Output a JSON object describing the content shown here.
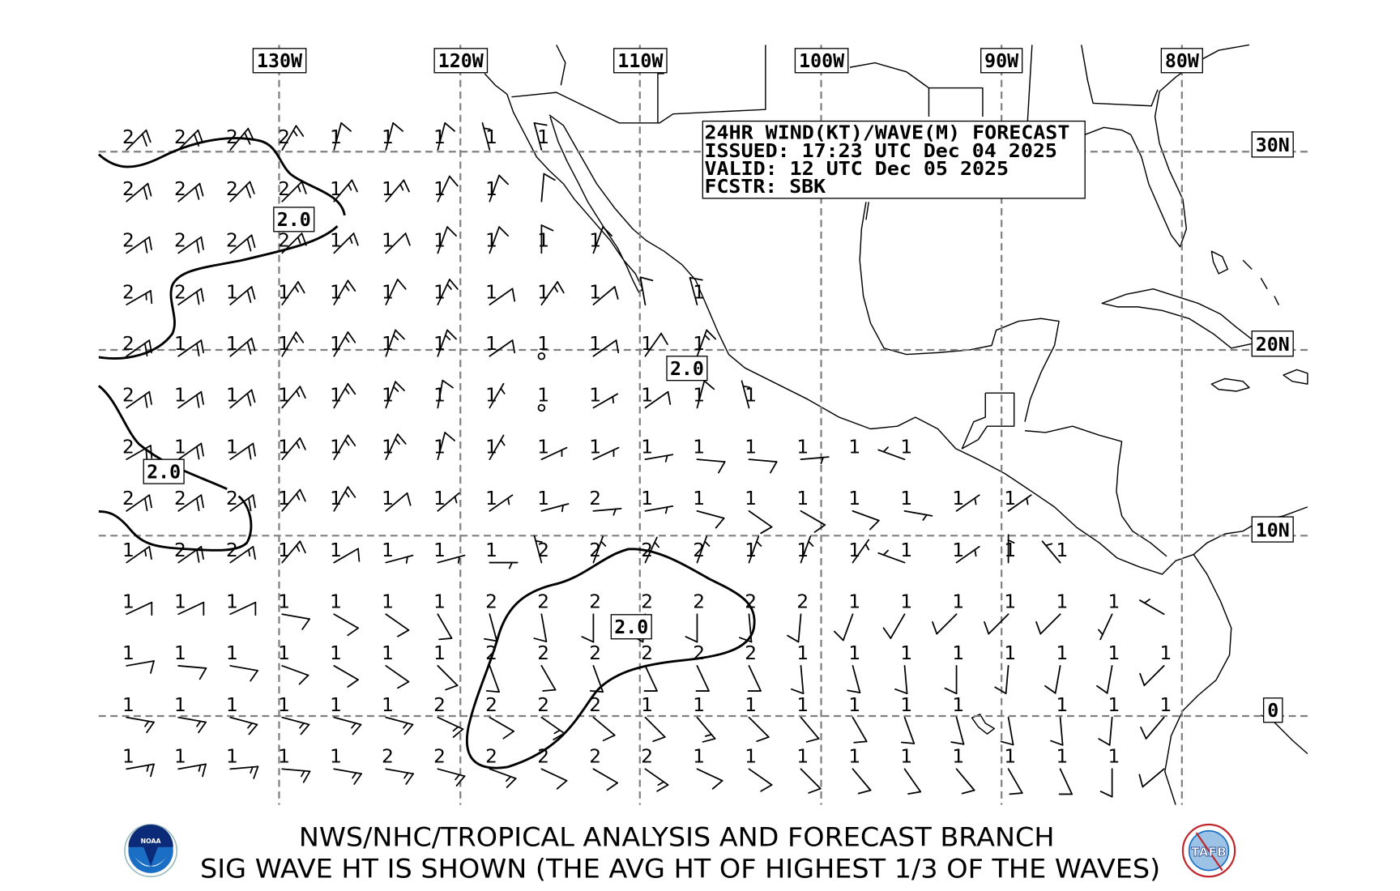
{
  "info_box": {
    "line1": "24HR WIND(KT)/WAVE(M) FORECAST",
    "line2": "ISSUED: 17:23 UTC Dec 04 2025",
    "line3": "VALID: 12 UTC Dec 05 2025",
    "line4": "FCSTR: SBK"
  },
  "longitude_labels": [
    "130W",
    "120W",
    "110W",
    "100W",
    "90W",
    "80W"
  ],
  "latitude_labels": [
    "30N",
    "20N",
    "10N",
    "0"
  ],
  "contour_labels": [
    "2.0",
    "2.0",
    "2.0",
    "2.0"
  ],
  "footer": {
    "line1": "NWS/NHC/TROPICAL ANALYSIS AND FORECAST BRANCH",
    "line2": "SIG WAVE HT IS SHOWN (THE AVG HT OF HIGHEST 1/3 OF THE WAVES)",
    "noaa_logo_text": "NOAA",
    "tafb_logo_text": "TAFB"
  },
  "colors": {
    "noaa_blue": "#1a6fc4",
    "noaa_navy": "#0b2a78",
    "tafb_red": "#c0282d",
    "grid": "#808080"
  },
  "stations_legend": "each station: [sig wave height m, wind direction from (deg), wind speed kt]",
  "stations": [
    [
      [
        2,
        45,
        20
      ],
      [
        2,
        45,
        20
      ],
      [
        2,
        40,
        20
      ],
      [
        2,
        30,
        15
      ],
      [
        1,
        15,
        10
      ],
      [
        1,
        15,
        10
      ],
      [
        1,
        15,
        10
      ],
      [
        1,
        345,
        5
      ],
      [
        1,
        345,
        10
      ]
    ],
    [
      [
        2,
        50,
        20
      ],
      [
        2,
        50,
        20
      ],
      [
        2,
        45,
        20
      ],
      [
        2,
        45,
        15
      ],
      [
        1,
        40,
        15
      ],
      [
        1,
        40,
        15
      ],
      [
        1,
        25,
        10
      ],
      [
        1,
        20,
        10
      ],
      [
        null,
        5,
        10
      ]
    ],
    [
      [
        2,
        55,
        20
      ],
      [
        2,
        55,
        20
      ],
      [
        2,
        50,
        20
      ],
      [
        2,
        45,
        15
      ],
      [
        1,
        45,
        15
      ],
      [
        1,
        45,
        10
      ],
      [
        1,
        20,
        10
      ],
      [
        1,
        20,
        10
      ],
      [
        1,
        0,
        10
      ],
      [
        1,
        20,
        10
      ]
    ],
    [
      [
        2,
        60,
        15
      ],
      [
        2,
        55,
        20
      ],
      [
        1,
        50,
        20
      ],
      [
        1,
        35,
        15
      ],
      [
        1,
        30,
        15
      ],
      [
        1,
        25,
        10
      ],
      [
        1,
        25,
        15
      ],
      [
        1,
        55,
        10
      ],
      [
        1,
        35,
        15
      ],
      [
        1,
        50,
        10
      ],
      [
        null,
        350,
        10
      ],
      [
        1,
        345,
        10
      ]
    ],
    [
      [
        2,
        55,
        20
      ],
      [
        1,
        55,
        20
      ],
      [
        1,
        50,
        20
      ],
      [
        1,
        30,
        15
      ],
      [
        1,
        30,
        15
      ],
      [
        1,
        20,
        15
      ],
      [
        1,
        20,
        15
      ],
      [
        1,
        55,
        10
      ],
      [
        1,
        0,
        0
      ],
      [
        1,
        55,
        10
      ],
      [
        1,
        35,
        10
      ],
      [
        1,
        20,
        15
      ]
    ],
    [
      [
        2,
        55,
        20
      ],
      [
        1,
        55,
        20
      ],
      [
        1,
        50,
        20
      ],
      [
        1,
        40,
        15
      ],
      [
        1,
        30,
        15
      ],
      [
        1,
        20,
        15
      ],
      [
        1,
        10,
        10
      ],
      [
        1,
        30,
        5
      ],
      [
        1,
        0,
        0
      ],
      [
        1,
        60,
        5
      ],
      [
        1,
        55,
        10
      ],
      [
        1,
        15,
        10
      ],
      [
        1,
        345,
        5
      ]
    ],
    [
      [
        2,
        60,
        20
      ],
      [
        1,
        55,
        20
      ],
      [
        1,
        55,
        20
      ],
      [
        1,
        40,
        15
      ],
      [
        1,
        30,
        15
      ],
      [
        1,
        25,
        15
      ],
      [
        1,
        15,
        10
      ],
      [
        1,
        30,
        5
      ],
      [
        1,
        65,
        5
      ],
      [
        1,
        65,
        5
      ],
      [
        1,
        80,
        5
      ],
      [
        1,
        95,
        10
      ],
      [
        1,
        95,
        10
      ],
      [
        1,
        85,
        5
      ],
      [
        1,
        null,
        null
      ],
      [
        1,
        290,
        5
      ]
    ],
    [
      [
        2,
        55,
        20
      ],
      [
        2,
        55,
        20
      ],
      [
        2,
        55,
        20
      ],
      [
        1,
        40,
        15
      ],
      [
        1,
        30,
        15
      ],
      [
        1,
        50,
        10
      ],
      [
        1,
        50,
        5
      ],
      [
        1,
        55,
        5
      ],
      [
        1,
        75,
        5
      ],
      [
        2,
        85,
        5
      ],
      [
        1,
        80,
        5
      ],
      [
        1,
        105,
        10
      ],
      [
        1,
        125,
        10
      ],
      [
        1,
        120,
        10
      ],
      [
        1,
        110,
        10
      ],
      [
        1,
        100,
        5
      ],
      [
        1,
        55,
        5
      ],
      [
        1,
        55,
        5
      ]
    ],
    [
      [
        1,
        55,
        15
      ],
      [
        2,
        55,
        20
      ],
      [
        2,
        55,
        15
      ],
      [
        1,
        40,
        15
      ],
      [
        1,
        60,
        10
      ],
      [
        1,
        75,
        5
      ],
      [
        1,
        75,
        5
      ],
      [
        1,
        90,
        5
      ],
      [
        2,
        345,
        5
      ],
      [
        2,
        20,
        5
      ],
      [
        2,
        25,
        5
      ],
      [
        2,
        20,
        5
      ],
      [
        1,
        20,
        5
      ],
      [
        1,
        20,
        5
      ],
      [
        1,
        35,
        5
      ],
      [
        1,
        290,
        5
      ],
      [
        1,
        55,
        5
      ],
      [
        1,
        0,
        5
      ],
      [
        1,
        320,
        5
      ]
    ],
    [
      [
        1,
        65,
        10
      ],
      [
        1,
        65,
        10
      ],
      [
        1,
        65,
        10
      ],
      [
        1,
        100,
        10
      ],
      [
        1,
        120,
        10
      ],
      [
        1,
        125,
        10
      ],
      [
        1,
        150,
        10
      ],
      [
        2,
        165,
        10
      ],
      [
        2,
        170,
        10
      ],
      [
        2,
        180,
        10
      ],
      [
        2,
        185,
        10
      ],
      [
        2,
        180,
        10
      ],
      [
        2,
        175,
        10
      ],
      [
        2,
        185,
        10
      ],
      [
        1,
        200,
        10
      ],
      [
        1,
        210,
        10
      ],
      [
        1,
        225,
        10
      ],
      [
        1,
        225,
        10
      ],
      [
        1,
        225,
        10
      ],
      [
        1,
        205,
        5
      ],
      [
        null,
        300,
        5
      ]
    ],
    [
      [
        1,
        80,
        10
      ],
      [
        1,
        95,
        10
      ],
      [
        1,
        100,
        10
      ],
      [
        1,
        110,
        10
      ],
      [
        1,
        120,
        10
      ],
      [
        1,
        125,
        10
      ],
      [
        1,
        135,
        10
      ],
      [
        2,
        160,
        10
      ],
      [
        2,
        150,
        10
      ],
      [
        2,
        160,
        10
      ],
      [
        2,
        155,
        10
      ],
      [
        2,
        155,
        10
      ],
      [
        2,
        155,
        10
      ],
      [
        1,
        175,
        10
      ],
      [
        1,
        165,
        10
      ],
      [
        1,
        175,
        10
      ],
      [
        1,
        180,
        10
      ],
      [
        1,
        185,
        10
      ],
      [
        1,
        190,
        10
      ],
      [
        1,
        190,
        10
      ],
      [
        1,
        225,
        10
      ]
    ],
    [
      [
        1,
        100,
        15
      ],
      [
        1,
        100,
        15
      ],
      [
        1,
        105,
        15
      ],
      [
        1,
        105,
        15
      ],
      [
        1,
        105,
        15
      ],
      [
        1,
        105,
        15
      ],
      [
        2,
        115,
        15
      ],
      [
        2,
        120,
        10
      ],
      [
        2,
        125,
        15
      ],
      [
        2,
        130,
        10
      ],
      [
        1,
        135,
        10
      ],
      [
        1,
        140,
        15
      ],
      [
        1,
        135,
        10
      ],
      [
        1,
        140,
        10
      ],
      [
        1,
        150,
        10
      ],
      [
        1,
        160,
        10
      ],
      [
        1,
        165,
        10
      ],
      [
        null,
        170,
        10
      ],
      [
        1,
        175,
        10
      ],
      [
        1,
        185,
        10
      ],
      [
        1,
        220,
        10
      ]
    ],
    [
      [
        1,
        80,
        15
      ],
      [
        1,
        80,
        15
      ],
      [
        1,
        85,
        15
      ],
      [
        1,
        95,
        15
      ],
      [
        1,
        100,
        15
      ],
      [
        2,
        100,
        15
      ],
      [
        2,
        105,
        15
      ],
      [
        2,
        110,
        15
      ],
      [
        2,
        115,
        10
      ],
      [
        2,
        120,
        10
      ],
      [
        2,
        125,
        15
      ],
      [
        1,
        115,
        10
      ],
      [
        1,
        125,
        10
      ],
      [
        1,
        135,
        10
      ],
      [
        1,
        140,
        10
      ],
      [
        1,
        145,
        10
      ],
      [
        1,
        140,
        10
      ],
      [
        1,
        150,
        10
      ],
      [
        1,
        155,
        10
      ],
      [
        1,
        180,
        10
      ],
      [
        null,
        230,
        10
      ]
    ]
  ]
}
